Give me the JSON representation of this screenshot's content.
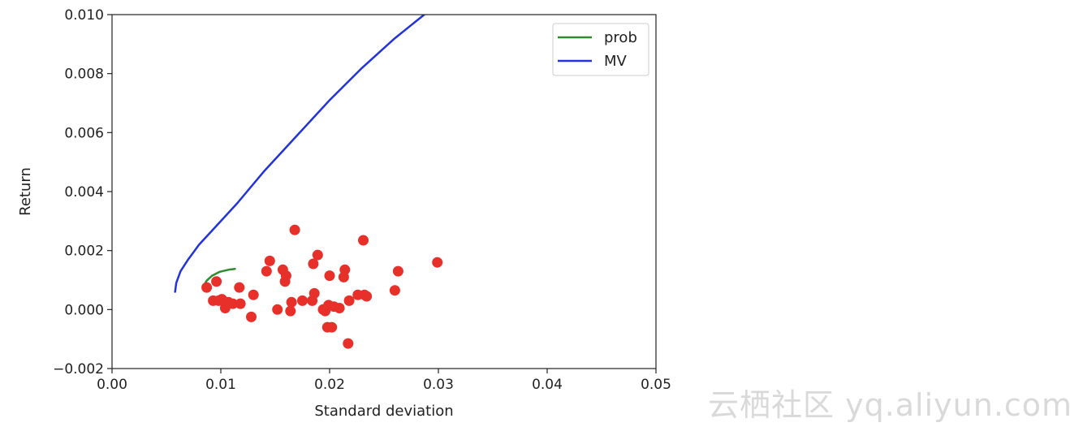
{
  "chart_data": {
    "type": "scatter",
    "title": "",
    "xlabel": "Standard deviation",
    "ylabel": "Return",
    "xlim": [
      0.0,
      0.05
    ],
    "ylim": [
      -0.002,
      0.01
    ],
    "x_ticks": [
      0.0,
      0.01,
      0.02,
      0.03,
      0.04,
      0.05
    ],
    "x_tick_labels": [
      "0.00",
      "0.01",
      "0.02",
      "0.03",
      "0.04",
      "0.05"
    ],
    "y_ticks": [
      -0.002,
      0.0,
      0.002,
      0.004,
      0.006,
      0.008,
      0.01
    ],
    "y_tick_labels": [
      "−0.002",
      "0.000",
      "0.002",
      "0.004",
      "0.006",
      "0.008",
      "0.010"
    ],
    "grid": false,
    "legend_position": "top-right",
    "series": [
      {
        "name": "prob",
        "type": "line",
        "color": "#2e8b2e",
        "points": [
          [
            0.0084,
            0.0008
          ],
          [
            0.0087,
            0.00098
          ],
          [
            0.0092,
            0.00115
          ],
          [
            0.0099,
            0.00128
          ],
          [
            0.0107,
            0.00135
          ],
          [
            0.0113,
            0.00138
          ]
        ]
      },
      {
        "name": "MV",
        "type": "line",
        "color": "#2233dd",
        "points": [
          [
            0.0058,
            0.0006
          ],
          [
            0.0059,
            0.0009
          ],
          [
            0.0063,
            0.0013
          ],
          [
            0.007,
            0.0017
          ],
          [
            0.008,
            0.0022
          ],
          [
            0.0095,
            0.0028
          ],
          [
            0.0115,
            0.0036
          ],
          [
            0.014,
            0.0047
          ],
          [
            0.017,
            0.0059
          ],
          [
            0.02,
            0.0071
          ],
          [
            0.023,
            0.0082
          ],
          [
            0.026,
            0.0092
          ],
          [
            0.0287,
            0.01
          ]
        ]
      },
      {
        "name": "",
        "type": "scatter",
        "color": "#e8302a",
        "points": [
          [
            0.0087,
            0.00075
          ],
          [
            0.0096,
            0.00095
          ],
          [
            0.0093,
            0.0003
          ],
          [
            0.0098,
            0.0003
          ],
          [
            0.0101,
            0.00035
          ],
          [
            0.0104,
            5e-05
          ],
          [
            0.0107,
            0.00025
          ],
          [
            0.0111,
            0.0002
          ],
          [
            0.0117,
            0.00075
          ],
          [
            0.0118,
            0.0002
          ],
          [
            0.0128,
            -0.00025
          ],
          [
            0.013,
            0.0005
          ],
          [
            0.0142,
            0.0013
          ],
          [
            0.0145,
            0.00165
          ],
          [
            0.0152,
            0.0
          ],
          [
            0.0157,
            0.00135
          ],
          [
            0.0159,
            0.00095
          ],
          [
            0.016,
            0.00115
          ],
          [
            0.0164,
            -5e-05
          ],
          [
            0.0165,
            0.00025
          ],
          [
            0.0168,
            0.0027
          ],
          [
            0.0175,
            0.0003
          ],
          [
            0.0184,
            0.0003
          ],
          [
            0.0185,
            0.00155
          ],
          [
            0.0186,
            0.00055
          ],
          [
            0.0189,
            0.00185
          ],
          [
            0.0194,
            0.0
          ],
          [
            0.0196,
            -5e-05
          ],
          [
            0.0198,
            -0.0006
          ],
          [
            0.0199,
            0.00015
          ],
          [
            0.02,
            0.00115
          ],
          [
            0.0202,
            -0.0006
          ],
          [
            0.0204,
            0.0001
          ],
          [
            0.0209,
            5e-05
          ],
          [
            0.0213,
            0.0011
          ],
          [
            0.0214,
            0.00135
          ],
          [
            0.0217,
            -0.00115
          ],
          [
            0.0218,
            0.0003
          ],
          [
            0.0226,
            0.0005
          ],
          [
            0.0231,
            0.00235
          ],
          [
            0.0232,
            0.0005
          ],
          [
            0.0234,
            0.00045
          ],
          [
            0.026,
            0.00065
          ],
          [
            0.0263,
            0.0013
          ],
          [
            0.0299,
            0.0016
          ]
        ]
      }
    ]
  },
  "watermark": {
    "text": "云栖社区 yq.aliyun.com"
  }
}
